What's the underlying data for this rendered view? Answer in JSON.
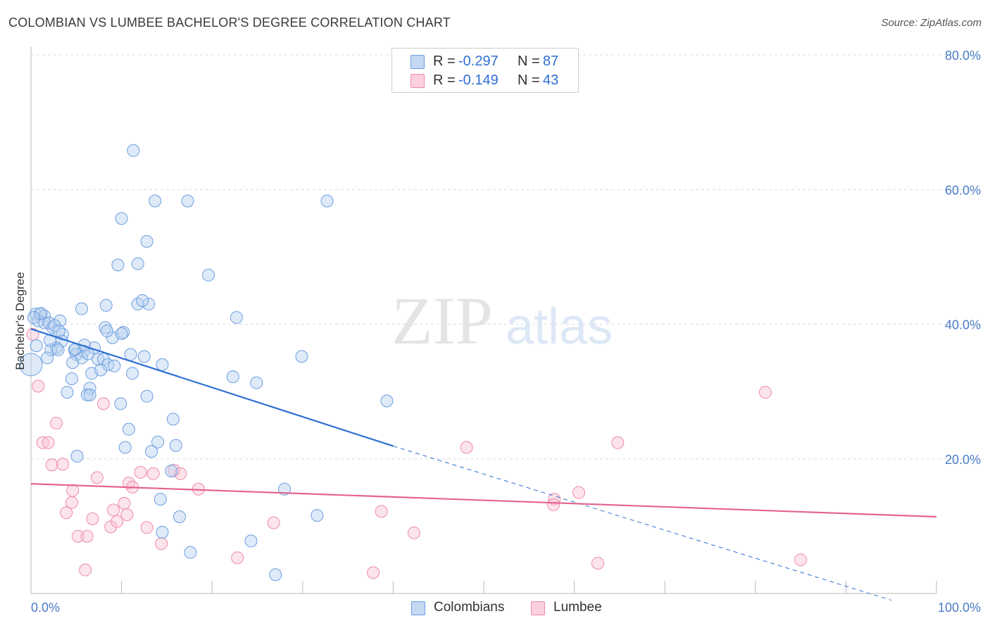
{
  "title": "COLOMBIAN VS LUMBEE BACHELOR'S DEGREE CORRELATION CHART",
  "source": "Source: ZipAtlas.com",
  "watermark": {
    "zip": "ZIP",
    "atlas": "atlas"
  },
  "legend_top": [
    {
      "r_label": "R =",
      "r_value": "-0.297",
      "n_label": "N =",
      "n_value": "87",
      "color": "#6b9ee0"
    },
    {
      "r_label": "R =",
      "r_value": "-0.149",
      "n_label": "N =",
      "n_value": "43",
      "color": "#ee8aaa"
    }
  ],
  "legend_bottom": [
    {
      "label": "Colombians",
      "color": "#6b9ee0"
    },
    {
      "label": "Lumbee",
      "color": "#ee8aaa"
    }
  ],
  "chart_data": {
    "type": "scatter",
    "title": "COLOMBIAN VS LUMBEE BACHELOR'S DEGREE CORRELATION CHART",
    "xlabel": "",
    "ylabel": "Bachelor's Degree",
    "xlim": [
      0,
      100
    ],
    "ylim": [
      0,
      80
    ],
    "x_tick_labels": [
      "0.0%",
      "100.0%"
    ],
    "y_ticks": [
      20,
      40,
      60,
      80
    ],
    "y_tick_labels": [
      "20.0%",
      "40.0%",
      "60.0%",
      "80.0%"
    ],
    "grid": "horizontal dashed",
    "legend_placement": "top-center and bottom-center",
    "series": [
      {
        "name": "Colombians",
        "color": "#6b9ee0",
        "r": -0.297,
        "n": 87,
        "trend": {
          "x_start": 0,
          "y_start": 39.3,
          "x_solid_end": 40,
          "y_solid_end": 21.9,
          "x_end": 95,
          "y_end": -1
        },
        "points": [
          [
            0.0,
            34.0
          ],
          [
            0.5,
            41.5
          ],
          [
            1.0,
            41.5
          ],
          [
            1.5,
            41.2
          ],
          [
            0.8,
            40.5
          ],
          [
            1.5,
            40.2
          ],
          [
            2.0,
            40.2
          ],
          [
            2.4,
            39.5
          ],
          [
            3.2,
            40.5
          ],
          [
            3.5,
            38.5
          ],
          [
            3.4,
            37.5
          ],
          [
            2.8,
            36.5
          ],
          [
            2.2,
            36.2
          ],
          [
            3.0,
            36.2
          ],
          [
            4.8,
            36.2
          ],
          [
            5.8,
            36.0
          ],
          [
            5.0,
            35.5
          ],
          [
            5.6,
            35.0
          ],
          [
            4.6,
            34.3
          ],
          [
            1.8,
            35.0
          ],
          [
            7.4,
            34.8
          ],
          [
            8.0,
            34.8
          ],
          [
            8.5,
            34.0
          ],
          [
            9.2,
            33.8
          ],
          [
            7.0,
            36.5
          ],
          [
            9.0,
            38.0
          ],
          [
            8.2,
            39.5
          ],
          [
            8.4,
            39.0
          ],
          [
            10.2,
            38.8
          ],
          [
            10.0,
            38.6
          ],
          [
            11.0,
            35.5
          ],
          [
            12.5,
            35.2
          ],
          [
            14.5,
            34.0
          ],
          [
            11.2,
            32.7
          ],
          [
            6.7,
            32.7
          ],
          [
            4.5,
            31.9
          ],
          [
            6.5,
            30.5
          ],
          [
            4.0,
            29.9
          ],
          [
            6.2,
            29.5
          ],
          [
            6.5,
            29.5
          ],
          [
            12.8,
            29.3
          ],
          [
            9.9,
            28.2
          ],
          [
            8.3,
            42.8
          ],
          [
            5.6,
            42.3
          ],
          [
            11.8,
            43.0
          ],
          [
            13.0,
            43.0
          ],
          [
            12.3,
            43.5
          ],
          [
            22.7,
            41.0
          ],
          [
            11.3,
            65.8
          ],
          [
            13.7,
            58.3
          ],
          [
            17.3,
            58.3
          ],
          [
            32.7,
            58.3
          ],
          [
            10.0,
            55.7
          ],
          [
            12.8,
            52.3
          ],
          [
            9.6,
            48.8
          ],
          [
            11.8,
            49.0
          ],
          [
            19.6,
            47.3
          ],
          [
            29.9,
            35.2
          ],
          [
            22.3,
            32.2
          ],
          [
            24.9,
            31.3
          ],
          [
            39.3,
            28.6
          ],
          [
            15.7,
            25.9
          ],
          [
            10.8,
            24.4
          ],
          [
            14.0,
            22.5
          ],
          [
            16.0,
            22.0
          ],
          [
            10.4,
            21.7
          ],
          [
            13.3,
            21.1
          ],
          [
            5.1,
            20.4
          ],
          [
            15.5,
            18.2
          ],
          [
            14.3,
            14.0
          ],
          [
            16.4,
            11.4
          ],
          [
            14.5,
            9.1
          ],
          [
            17.6,
            6.1
          ],
          [
            24.3,
            7.8
          ],
          [
            27.0,
            2.8
          ],
          [
            28.0,
            15.5
          ],
          [
            31.6,
            11.6
          ],
          [
            1.1,
            41.6
          ],
          [
            0.3,
            41.0
          ],
          [
            2.6,
            39.8
          ],
          [
            6.3,
            35.6
          ],
          [
            3.1,
            39.0
          ],
          [
            0.6,
            36.8
          ],
          [
            7.7,
            33.2
          ],
          [
            2.1,
            37.6
          ],
          [
            4.9,
            36.3
          ],
          [
            5.9,
            36.9
          ]
        ]
      },
      {
        "name": "Lumbee",
        "color": "#ee8aaa",
        "r": -0.149,
        "n": 43,
        "trend": {
          "x_start": 0,
          "y_start": 16.3,
          "x_end": 100,
          "y_end": 11.4
        },
        "points": [
          [
            0.2,
            38.5
          ],
          [
            0.8,
            30.8
          ],
          [
            2.8,
            25.3
          ],
          [
            1.3,
            22.4
          ],
          [
            1.9,
            22.4
          ],
          [
            2.3,
            19.1
          ],
          [
            3.5,
            19.2
          ],
          [
            8.0,
            28.2
          ],
          [
            7.3,
            17.2
          ],
          [
            10.8,
            16.4
          ],
          [
            11.2,
            15.8
          ],
          [
            12.1,
            18.0
          ],
          [
            13.5,
            17.8
          ],
          [
            15.8,
            18.3
          ],
          [
            16.5,
            17.8
          ],
          [
            18.5,
            15.5
          ],
          [
            4.6,
            15.3
          ],
          [
            4.5,
            13.5
          ],
          [
            3.9,
            12.0
          ],
          [
            6.8,
            11.1
          ],
          [
            8.8,
            9.9
          ],
          [
            9.5,
            10.7
          ],
          [
            10.3,
            13.4
          ],
          [
            9.1,
            12.4
          ],
          [
            10.6,
            11.7
          ],
          [
            12.8,
            9.8
          ],
          [
            14.4,
            7.4
          ],
          [
            5.2,
            8.5
          ],
          [
            6.2,
            8.5
          ],
          [
            6.0,
            3.5
          ],
          [
            22.8,
            5.3
          ],
          [
            26.8,
            10.5
          ],
          [
            38.7,
            12.2
          ],
          [
            42.3,
            9.0
          ],
          [
            37.8,
            3.1
          ],
          [
            48.1,
            21.7
          ],
          [
            57.8,
            14.0
          ],
          [
            57.7,
            13.2
          ],
          [
            60.5,
            15.0
          ],
          [
            62.6,
            4.5
          ],
          [
            64.8,
            22.4
          ],
          [
            81.1,
            29.9
          ],
          [
            85.0,
            5.0
          ]
        ]
      }
    ]
  }
}
